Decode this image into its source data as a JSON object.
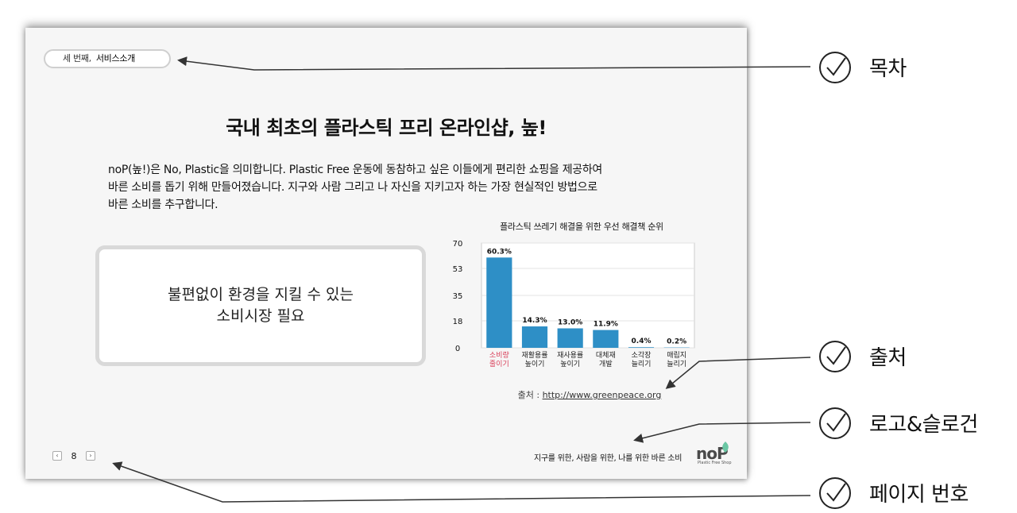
{
  "slide": {
    "toc": {
      "section": "세 번째,",
      "current": "서비스소개"
    },
    "title": "국내 최초의 플라스틱 프리 온라인샵, 높!",
    "body_lines": [
      "noP(높!)은 No, Plastic을 의미합니다. Plastic Free 운동에 동참하고 싶은 이들에게 편리한 쇼핑을 제공하여",
      "바른 소비를 돕기 위해 만들어졌습니다. 지구와 사람 그리고 나 자신을 지키고자 하는 가장 현실적인 방법으로",
      "바른 소비를 추구합니다."
    ],
    "need_box": {
      "line1": "불편없이 환경을 지킬 수 있는",
      "line2": "소비시장 필요"
    },
    "source": {
      "label": "출처 :",
      "url": "http://www.greenpeace.org"
    },
    "slogan": "지구를 위한, 사람을 위한, 나를 위한 바른 소비",
    "logo": {
      "word": "noP",
      "sub": "Plastic Free Shop"
    },
    "page": {
      "prev": "‹",
      "number": "8",
      "next": "›"
    }
  },
  "chart_data": {
    "type": "bar",
    "title": "플라스틱 쓰레기 해결을 위한 우선 해결책 순위",
    "categories": [
      [
        "소비량",
        "줄이기"
      ],
      [
        "재활용률",
        "높이기"
      ],
      [
        "재사용률",
        "높이기"
      ],
      [
        "대체재",
        "개발"
      ],
      [
        "소각장",
        "늘리기"
      ],
      [
        "매립지",
        "늘리기"
      ]
    ],
    "values": [
      60.3,
      14.3,
      13.0,
      11.9,
      0.4,
      0.2
    ],
    "value_labels": [
      "60.3%",
      "14.3%",
      "13.0%",
      "11.9%",
      "0.4%",
      "0.2%"
    ],
    "ylim": [
      0,
      70
    ],
    "yticks": [
      "0",
      "18",
      "35",
      "53",
      "70"
    ],
    "bar_color": "#2e8fc6",
    "highlight_category_color": "#d9405a",
    "grid": true
  },
  "annotations": [
    {
      "label": "목차"
    },
    {
      "label": "출처"
    },
    {
      "label": "로고&슬로건"
    },
    {
      "label": "페이지 번호"
    }
  ]
}
